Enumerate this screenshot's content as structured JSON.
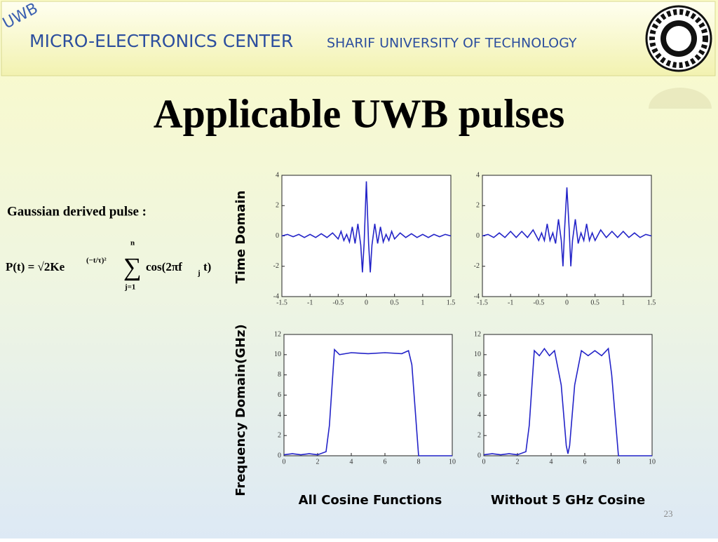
{
  "header": {
    "badge": "UWB",
    "center": "MICRO-ELECTRONICS CENTER",
    "university": "SHARIF UNIVERSITY OF TECHNOLOGY"
  },
  "slide": {
    "title": "Applicable UWB pulses",
    "formula_label": "Gaussian derived pulse :",
    "formula": {
      "lhs": "P(t) = √2Ke",
      "exponent": "(−t/τ)²",
      "sum": "∑",
      "upper": "n",
      "lower": "j=1",
      "body": "cos(2πf",
      "sub": "j",
      "tail": "t)"
    },
    "row_labels": [
      "Time Domain",
      "Frequency Domain(GHz)"
    ],
    "column_labels": [
      "All Cosine Functions",
      "Without 5 GHz Cosine"
    ],
    "page_number": "23"
  },
  "chart_data": [
    {
      "type": "line",
      "color": "#2323c8",
      "x": [
        -1.5,
        -1.4,
        -1.3,
        -1.2,
        -1.1,
        -1.0,
        -0.9,
        -0.8,
        -0.7,
        -0.6,
        -0.5,
        -0.45,
        -0.4,
        -0.35,
        -0.3,
        -0.25,
        -0.2,
        -0.15,
        -0.1,
        -0.07,
        -0.04,
        0,
        0.04,
        0.07,
        0.1,
        0.15,
        0.2,
        0.25,
        0.3,
        0.35,
        0.4,
        0.45,
        0.5,
        0.6,
        0.7,
        0.8,
        0.9,
        1.0,
        1.1,
        1.2,
        1.3,
        1.4,
        1.5
      ],
      "values": [
        0,
        0.1,
        -0.05,
        0.1,
        -0.1,
        0.1,
        -0.1,
        0.15,
        -0.1,
        0.2,
        -0.2,
        0.3,
        -0.3,
        0.1,
        -0.4,
        0.6,
        -0.5,
        0.8,
        -0.6,
        -2.4,
        -0.5,
        3.6,
        -0.5,
        -2.4,
        -0.6,
        0.8,
        -0.5,
        0.6,
        -0.4,
        0.1,
        -0.3,
        0.3,
        -0.2,
        0.2,
        -0.1,
        0.15,
        -0.1,
        0.1,
        -0.1,
        0.1,
        -0.05,
        0.1,
        0
      ],
      "xlim": [
        -1.5,
        1.5
      ],
      "xticks": [
        -1.5,
        -1,
        -0.5,
        0,
        0.5,
        1,
        1.5
      ],
      "ylim": [
        -4,
        4
      ],
      "yticks": [
        -4,
        -2,
        0,
        2,
        4
      ]
    },
    {
      "type": "line",
      "color": "#2323c8",
      "x": [
        -1.5,
        -1.4,
        -1.3,
        -1.2,
        -1.1,
        -1.0,
        -0.9,
        -0.8,
        -0.7,
        -0.6,
        -0.5,
        -0.45,
        -0.4,
        -0.35,
        -0.3,
        -0.25,
        -0.2,
        -0.15,
        -0.1,
        -0.07,
        -0.04,
        0,
        0.04,
        0.07,
        0.1,
        0.15,
        0.2,
        0.25,
        0.3,
        0.35,
        0.4,
        0.45,
        0.5,
        0.6,
        0.7,
        0.8,
        0.9,
        1.0,
        1.1,
        1.2,
        1.3,
        1.4,
        1.5
      ],
      "values": [
        0,
        0.1,
        -0.1,
        0.2,
        -0.1,
        0.3,
        -0.1,
        0.3,
        -0.1,
        0.4,
        -0.3,
        0.2,
        -0.3,
        0.8,
        -0.3,
        0.2,
        -0.5,
        1.1,
        -0.3,
        -2.0,
        0.5,
        3.2,
        0.5,
        -2.0,
        -0.3,
        1.1,
        -0.5,
        0.2,
        -0.3,
        0.8,
        -0.3,
        0.2,
        -0.3,
        0.4,
        -0.1,
        0.3,
        -0.1,
        0.3,
        -0.1,
        0.2,
        -0.1,
        0.1,
        0
      ],
      "xlim": [
        -1.5,
        1.5
      ],
      "xticks": [
        -1.5,
        -1,
        -0.5,
        0,
        0.5,
        1,
        1.5
      ],
      "ylim": [
        -4,
        4
      ],
      "yticks": [
        -4,
        -2,
        0,
        2,
        4
      ]
    },
    {
      "type": "line",
      "color": "#2323c8",
      "x": [
        0,
        0.5,
        1,
        1.5,
        2,
        2.5,
        2.7,
        3,
        3.3,
        4,
        5,
        6,
        7,
        7.4,
        7.6,
        8,
        10
      ],
      "values": [
        0.1,
        0.2,
        0.1,
        0.2,
        0.1,
        0.4,
        3,
        10.5,
        10,
        10.2,
        10.1,
        10.2,
        10.1,
        10.4,
        9,
        0,
        0
      ],
      "xlim": [
        0,
        10
      ],
      "xticks": [
        0,
        2,
        4,
        6,
        8,
        10
      ],
      "ylim": [
        0,
        12
      ],
      "yticks": [
        0,
        2,
        4,
        6,
        8,
        10,
        12
      ]
    },
    {
      "type": "line",
      "color": "#2323c8",
      "x": [
        0,
        0.5,
        1,
        1.5,
        2,
        2.5,
        2.7,
        3,
        3.3,
        3.6,
        3.9,
        4.2,
        4.6,
        4.9,
        5,
        5.1,
        5.4,
        5.8,
        6.2,
        6.6,
        7,
        7.4,
        7.6,
        8,
        10
      ],
      "values": [
        0.1,
        0.2,
        0.1,
        0.2,
        0.1,
        0.4,
        3,
        10.4,
        9.9,
        10.6,
        9.9,
        10.4,
        7,
        1,
        0.2,
        1,
        7,
        10.4,
        9.9,
        10.4,
        9.9,
        10.6,
        8,
        0,
        0
      ],
      "xlim": [
        0,
        10
      ],
      "xticks": [
        0,
        2,
        4,
        6,
        8,
        10
      ],
      "ylim": [
        0,
        12
      ],
      "yticks": [
        0,
        2,
        4,
        6,
        8,
        10,
        12
      ]
    }
  ]
}
